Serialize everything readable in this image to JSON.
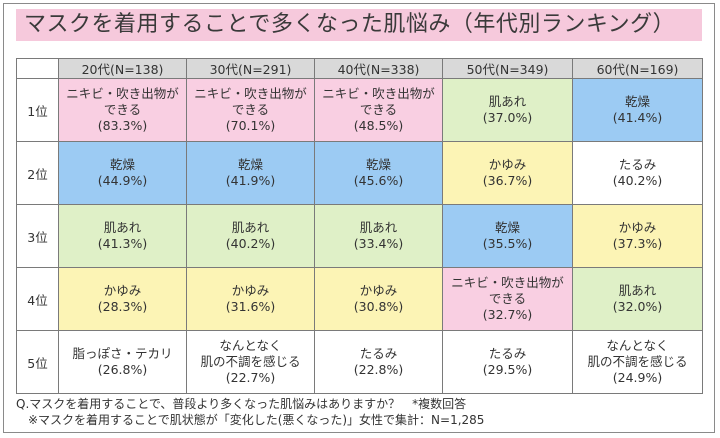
{
  "title": "マスクを着用することで多くなった肌悩み（年代別ランキング）",
  "chart_data": {
    "type": "table",
    "title": "マスクを着用することで多くなった肌悩み（年代別ランキング）",
    "columns": [
      "20代(N=138)",
      "30代(N=291)",
      "40代(N=338)",
      "50代(N=349)",
      "60代(N=169)"
    ],
    "rows": [
      {
        "rank": "1位",
        "cells": [
          {
            "item": "ニキビ・吹き出物が\nできる",
            "pct": "(83.3%)",
            "value": 83.3,
            "color": "#f9cfe2"
          },
          {
            "item": "ニキビ・吹き出物が\nできる",
            "pct": "(70.1%)",
            "value": 70.1,
            "color": "#f9cfe2"
          },
          {
            "item": "ニキビ・吹き出物が\nできる",
            "pct": "(48.5%)",
            "value": 48.5,
            "color": "#f9cfe2"
          },
          {
            "item": "肌あれ",
            "pct": "(37.0%)",
            "value": 37.0,
            "color": "#dff0c7"
          },
          {
            "item": "乾燥",
            "pct": "(41.4%)",
            "value": 41.4,
            "color": "#9ccbf3"
          }
        ]
      },
      {
        "rank": "2位",
        "cells": [
          {
            "item": "乾燥",
            "pct": "(44.9%)",
            "value": 44.9,
            "color": "#9ccbf3"
          },
          {
            "item": "乾燥",
            "pct": "(41.9%)",
            "value": 41.9,
            "color": "#9ccbf3"
          },
          {
            "item": "乾燥",
            "pct": "(45.6%)",
            "value": 45.6,
            "color": "#9ccbf3"
          },
          {
            "item": "かゆみ",
            "pct": "(36.7%)",
            "value": 36.7,
            "color": "#fcf4b5"
          },
          {
            "item": "たるみ",
            "pct": "(40.2%)",
            "value": 40.2,
            "color": "#ffffff"
          }
        ]
      },
      {
        "rank": "3位",
        "cells": [
          {
            "item": "肌あれ",
            "pct": "(41.3%)",
            "value": 41.3,
            "color": "#dff0c7"
          },
          {
            "item": "肌あれ",
            "pct": "(40.2%)",
            "value": 40.2,
            "color": "#dff0c7"
          },
          {
            "item": "肌あれ",
            "pct": "(33.4%)",
            "value": 33.4,
            "color": "#dff0c7"
          },
          {
            "item": "乾燥",
            "pct": "(35.5%)",
            "value": 35.5,
            "color": "#9ccbf3"
          },
          {
            "item": "かゆみ",
            "pct": "(37.3%)",
            "value": 37.3,
            "color": "#fcf4b5"
          }
        ]
      },
      {
        "rank": "4位",
        "cells": [
          {
            "item": "かゆみ",
            "pct": "(28.3%)",
            "value": 28.3,
            "color": "#fcf4b5"
          },
          {
            "item": "かゆみ",
            "pct": "(31.6%)",
            "value": 31.6,
            "color": "#fcf4b5"
          },
          {
            "item": "かゆみ",
            "pct": "(30.8%)",
            "value": 30.8,
            "color": "#fcf4b5"
          },
          {
            "item": "ニキビ・吹き出物が\nできる",
            "pct": "(32.7%)",
            "value": 32.7,
            "color": "#f9cfe2"
          },
          {
            "item": "肌あれ",
            "pct": "(32.0%)",
            "value": 32.0,
            "color": "#dff0c7"
          }
        ]
      },
      {
        "rank": "5位",
        "cells": [
          {
            "item": "脂っぽさ・テカリ",
            "pct": "(26.8%)",
            "value": 26.8,
            "color": "#ffffff"
          },
          {
            "item": "なんとなく\n肌の不調を感じる",
            "pct": "(22.7%)",
            "value": 22.7,
            "color": "#ffffff"
          },
          {
            "item": "たるみ",
            "pct": "(22.8%)",
            "value": 22.8,
            "color": "#ffffff"
          },
          {
            "item": "たるみ",
            "pct": "(29.5%)",
            "value": 29.5,
            "color": "#ffffff"
          },
          {
            "item": "なんとなく\n肌の不調を感じる",
            "pct": "(24.9%)",
            "value": 24.9,
            "color": "#ffffff"
          }
        ]
      }
    ]
  },
  "footnote": {
    "line1": "Q.マスクを着用することで、普段より多くなった肌悩みはありますか？　*複数回答",
    "line2": "※マスクを着用することで肌状態が「変化した(悪くなった)」女性で集計：N=1,285"
  }
}
